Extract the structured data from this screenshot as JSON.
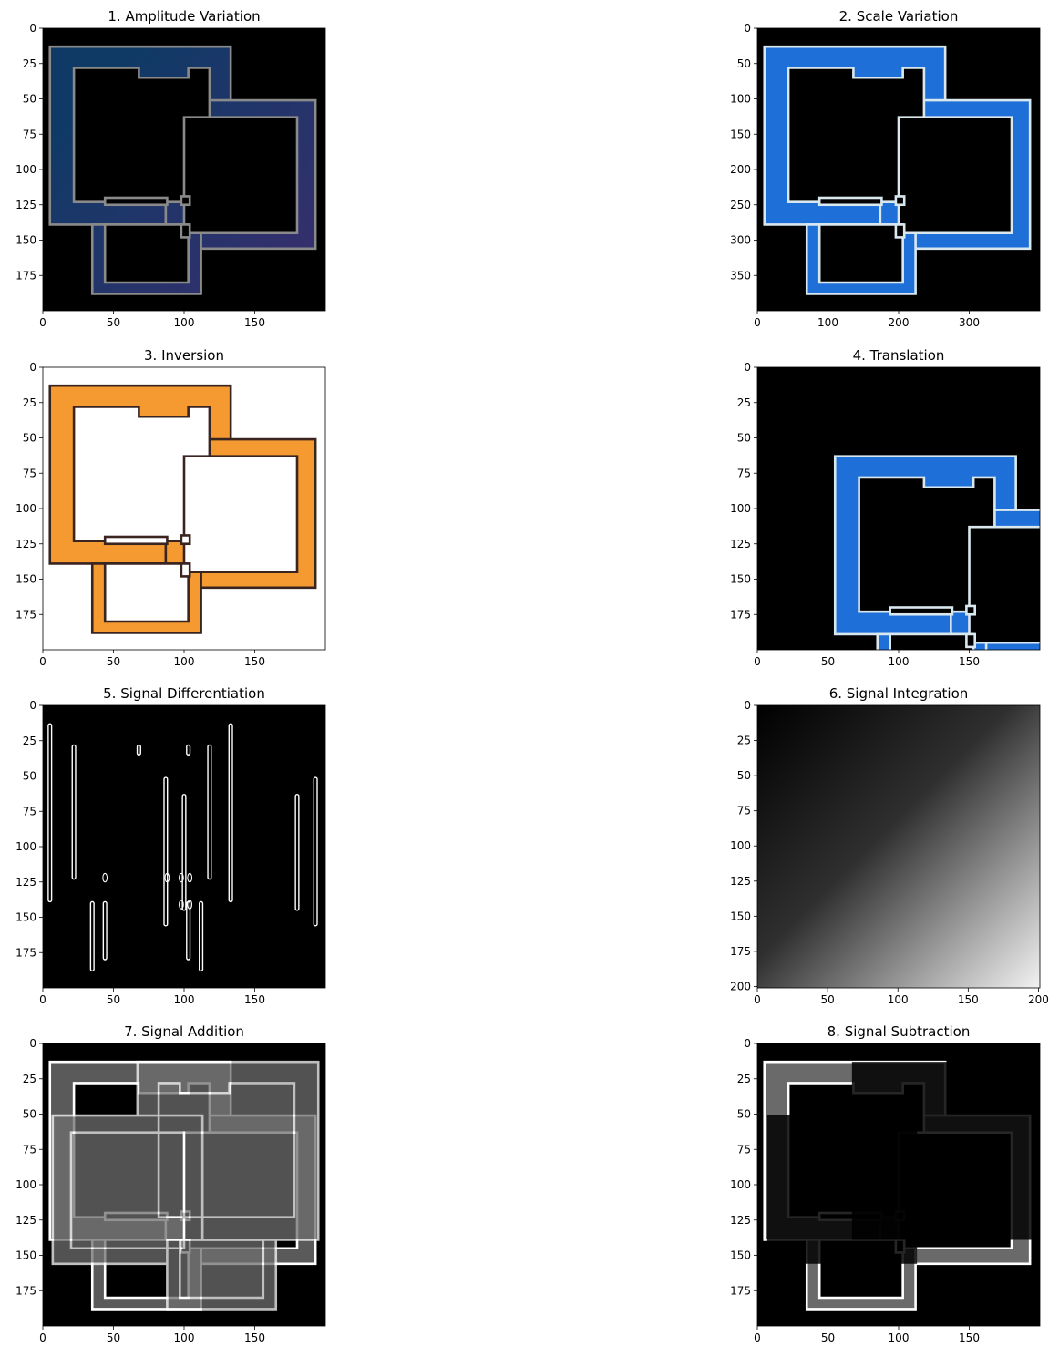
{
  "chart_data": [
    {
      "type": "image",
      "title": "1. Amplitude Variation",
      "image_size": [
        200,
        200
      ],
      "xlim": [
        0,
        200
      ],
      "ylim": [
        200,
        0
      ],
      "x_ticks": [
        0,
        50,
        100,
        150
      ],
      "y_ticks": [
        0,
        25,
        50,
        75,
        100,
        125,
        150,
        175
      ],
      "style": "color-dim",
      "background": "#000000",
      "gradient": [
        "#0f3a66",
        "#3a2e6e",
        "#6a2f70"
      ],
      "outline": "#8a8a8a"
    },
    {
      "type": "image",
      "title": "2. Scale Variation",
      "image_size": [
        400,
        400
      ],
      "xlim": [
        0,
        400
      ],
      "ylim": [
        400,
        0
      ],
      "x_ticks": [
        0,
        100,
        200,
        300
      ],
      "y_ticks": [
        0,
        50,
        100,
        150,
        200,
        250,
        300,
        350
      ],
      "style": "color",
      "background": "#000000",
      "gradient": [
        "#1e6fd8",
        "#6a4fd0",
        "#c93fa8"
      ],
      "outline": "#d9e8ee"
    },
    {
      "type": "image",
      "title": "3. Inversion",
      "image_size": [
        200,
        200
      ],
      "xlim": [
        0,
        200
      ],
      "ylim": [
        200,
        0
      ],
      "x_ticks": [
        0,
        50,
        100,
        150
      ],
      "y_ticks": [
        0,
        25,
        50,
        75,
        100,
        125,
        150,
        175
      ],
      "style": "inverted",
      "background": "#ffffff",
      "gradient": [
        "#f59a30",
        "#9cc24a",
        "#3fd16e"
      ],
      "outline": "#3a2420"
    },
    {
      "type": "image",
      "title": "4. Translation",
      "image_size": [
        200,
        200
      ],
      "xlim": [
        0,
        200
      ],
      "ylim": [
        200,
        0
      ],
      "x_ticks": [
        0,
        50,
        100,
        150
      ],
      "y_ticks": [
        0,
        25,
        50,
        75,
        100,
        125,
        150,
        175
      ],
      "style": "color-shifted",
      "shift": [
        50,
        50
      ],
      "background": "#000000",
      "gradient": [
        "#1e6fd8",
        "#4f52c8",
        "#7a3fb0"
      ],
      "outline": "#d9e8ee"
    },
    {
      "type": "image",
      "title": "5. Signal Differentiation",
      "image_size": [
        200,
        200
      ],
      "xlim": [
        0,
        200
      ],
      "ylim": [
        200,
        0
      ],
      "x_ticks": [
        0,
        50,
        100,
        150
      ],
      "y_ticks": [
        0,
        25,
        50,
        75,
        100,
        125,
        150,
        175
      ],
      "style": "edges",
      "background": "#000000"
    },
    {
      "type": "heatmap",
      "title": "6. Signal Integration",
      "image_size": [
        201,
        201
      ],
      "xlim": [
        0,
        201
      ],
      "ylim": [
        201,
        0
      ],
      "x_ticks": [
        0,
        50,
        100,
        150,
        200
      ],
      "y_ticks": [
        0,
        25,
        50,
        75,
        100,
        125,
        150,
        175,
        200
      ],
      "style": "cumulative",
      "colormap": "gray"
    },
    {
      "type": "image",
      "title": "7. Signal Addition",
      "image_size": [
        200,
        200
      ],
      "xlim": [
        0,
        200
      ],
      "ylim": [
        200,
        0
      ],
      "x_ticks": [
        0,
        50,
        100,
        150
      ],
      "y_ticks": [
        0,
        25,
        50,
        75,
        100,
        125,
        150,
        175
      ],
      "style": "addition",
      "background": "#000000"
    },
    {
      "type": "image",
      "title": "8. Signal Subtraction",
      "image_size": [
        200,
        200
      ],
      "xlim": [
        0,
        200
      ],
      "ylim": [
        200,
        0
      ],
      "x_ticks": [
        0,
        50,
        100,
        150
      ],
      "y_ticks": [
        0,
        25,
        50,
        75,
        100,
        125,
        150,
        175
      ],
      "style": "subtraction",
      "background": "#000000"
    }
  ]
}
